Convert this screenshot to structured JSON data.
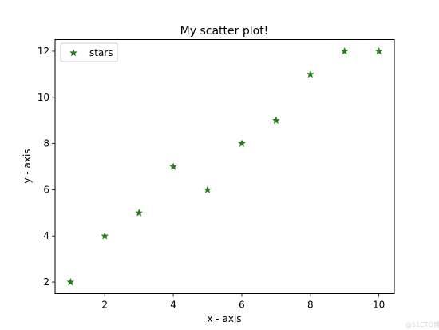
{
  "chart_data": {
    "type": "scatter",
    "title": "My scatter plot!",
    "xlabel": "x - axis",
    "ylabel": "y - axis",
    "x": [
      1,
      2,
      3,
      4,
      5,
      6,
      7,
      8,
      9,
      10
    ],
    "series": [
      {
        "name": "stars",
        "marker": "star",
        "color": "#2a7a1f",
        "y": [
          2,
          4,
          5,
          7,
          6,
          8,
          9,
          11,
          12,
          12
        ]
      }
    ],
    "xlim": [
      0.55,
      10.45
    ],
    "ylim": [
      1.5,
      12.5
    ],
    "xticks": [
      2,
      4,
      6,
      8,
      10
    ],
    "yticks": [
      2,
      4,
      6,
      8,
      10,
      12
    ],
    "grid": false,
    "legend": "top-left"
  },
  "watermark": "@51CTO博客"
}
